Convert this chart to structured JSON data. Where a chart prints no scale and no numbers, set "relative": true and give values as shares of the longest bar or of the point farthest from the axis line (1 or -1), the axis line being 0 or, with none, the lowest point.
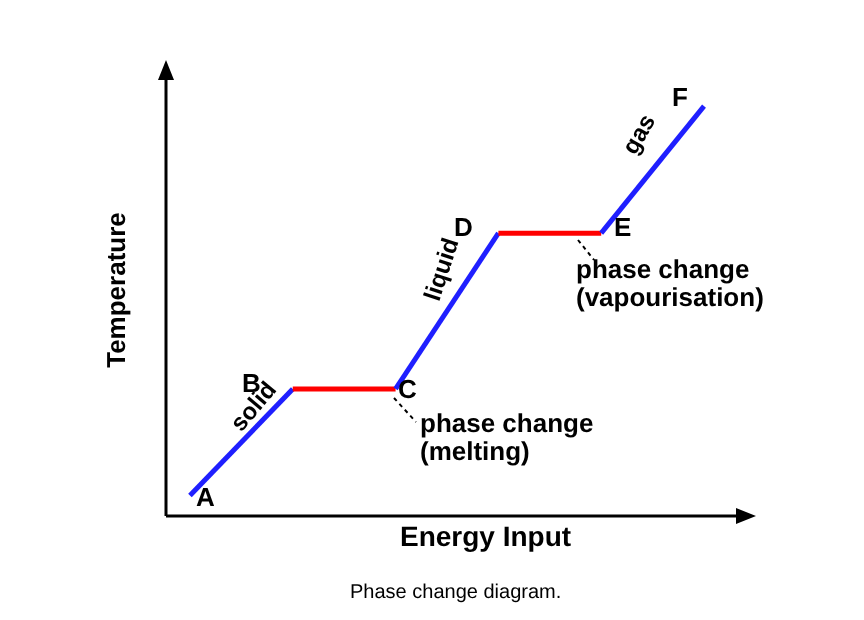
{
  "chart_data": {
    "type": "line",
    "relative": true,
    "xlabel": "Energy Input",
    "ylabel": "Temperature",
    "categories": [
      null,
      null,
      null,
      null,
      null,
      null
    ],
    "series": [
      {
        "color": "#1f1fff",
        "values": [
          0.05,
          0.31,
          null,
          null,
          null,
          null
        ]
      },
      {
        "color": "#ff0000",
        "values": [
          null,
          0.31,
          0.31,
          null,
          null,
          null
        ]
      },
      {
        "color": "#1f1fff",
        "values": [
          null,
          null,
          0.31,
          0.69,
          null,
          null
        ]
      },
      {
        "color": "#ff0000",
        "values": [
          null,
          null,
          null,
          0.69,
          0.69,
          null
        ]
      },
      {
        "color": "#1f1fff",
        "values": [
          null,
          null,
          null,
          null,
          0.69,
          1
        ]
      }
    ],
    "marker": "none",
    "grid": false,
    "legend": false,
    "annotations": [
      "A",
      "B",
      "C",
      "D",
      "E",
      "F",
      "solid",
      "liquid",
      "gas",
      "phase change\n(melting)",
      "phase change\n(vapourisation)",
      "Phase change diagram."
    ]
  }
}
